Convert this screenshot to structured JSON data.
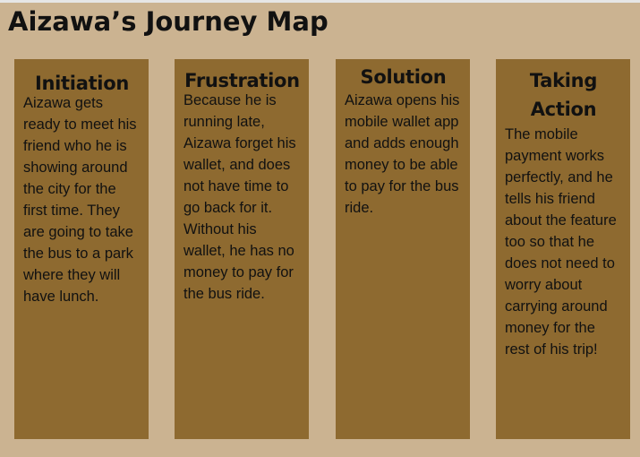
{
  "title": "Aizawa’s Journey Map",
  "stages": [
    {
      "heading": "Initiation",
      "body": "Aizawa gets ready to meet his friend who he is showing around the city for the first time. They are going to take the bus to a park where they will have lunch."
    },
    {
      "heading": "Frustration",
      "body": "Because he is running late, Aizawa forget his wallet, and does not have time to go back for it. Without his wallet, he has no money to pay for the bus ride."
    },
    {
      "heading": "Solution",
      "body": "Aizawa opens his mobile wallet app and adds enough money to be able to pay for the bus ride."
    },
    {
      "heading": "Taking Action",
      "body": "The mobile payment works perfectly, and he tells his friend about the feature too so that he does not need to worry about carrying around money for the rest of his trip!"
    }
  ],
  "colors": {
    "background": "#cbb391",
    "card": "#8e6a30",
    "text": "#111111"
  }
}
